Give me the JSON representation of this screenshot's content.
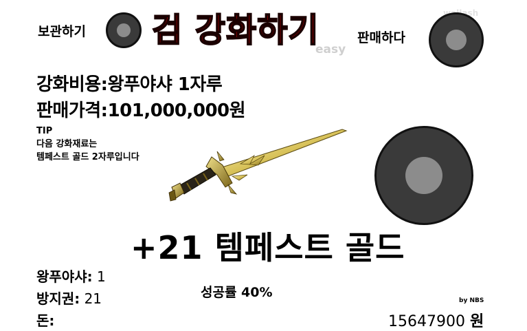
{
  "header": {
    "store_label": "보관하기",
    "title": "검 강화하기",
    "difficulty": "easy",
    "sell_label": "판매하다",
    "watermark": "wallash"
  },
  "info": {
    "cost_label": "강화비용:",
    "cost_value": "왕푸야샤 1자루",
    "price_label": "판매가격:",
    "price_value": "101,000,000원"
  },
  "tip": {
    "title": "TIP",
    "line1": "다음 강화재료는",
    "line2": "템페스트 골드 2자루입니다"
  },
  "item": {
    "name": "+21 템페스트 골드",
    "sword_icon": "golden-sword-icon"
  },
  "inventory": {
    "item1_label": "왕푸야샤:",
    "item1_value": "1",
    "item2_label": "방지권:",
    "item2_value": "21",
    "money_label": "돈:",
    "money_value": "15647900",
    "money_unit": "원"
  },
  "success_rate": "성공률 40%",
  "credit": "by NBS",
  "colors": {
    "title": "#e00000",
    "button_outer": "#3a3a3a",
    "button_inner": "#8c8c8c",
    "blade": "#d8c25a"
  }
}
